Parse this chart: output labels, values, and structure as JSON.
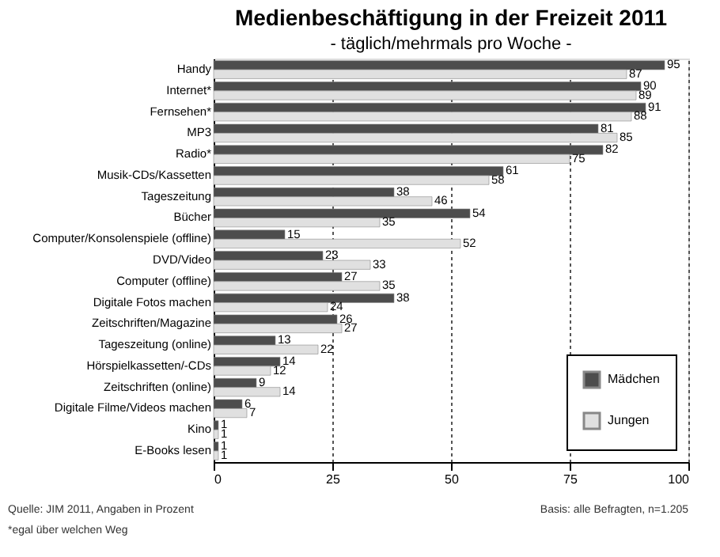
{
  "chart_data": {
    "type": "bar",
    "orientation": "horizontal",
    "title": "Medienbeschäftigung in der Freizeit 2011",
    "subtitle": "- täglich/mehrmals pro Woche -",
    "categories": [
      "Handy",
      "Internet*",
      "Fernsehen*",
      "MP3",
      "Radio*",
      "Musik-CDs/Kassetten",
      "Tageszeitung",
      "Bücher",
      "Computer/Konsolenspiele (offline)",
      "DVD/Video",
      "Computer (offline)",
      "Digitale Fotos machen",
      "Zeitschriften/Magazine",
      "Tageszeitung (online)",
      "Hörspielkassetten/-CDs",
      "Zeitschriften (online)",
      "Digitale Filme/Videos machen",
      "Kino",
      "E-Books lesen"
    ],
    "series": [
      {
        "name": "Mädchen",
        "color": "#4d4d4d",
        "values": [
          95,
          90,
          91,
          81,
          82,
          61,
          38,
          54,
          15,
          23,
          27,
          38,
          26,
          13,
          14,
          9,
          6,
          1,
          1
        ]
      },
      {
        "name": "Jungen",
        "color": "#e0e0e0",
        "values": [
          87,
          89,
          88,
          85,
          75,
          58,
          46,
          35,
          52,
          33,
          35,
          24,
          27,
          22,
          12,
          14,
          7,
          1,
          1
        ]
      }
    ],
    "xlim": [
      0,
      100
    ],
    "xticks": [
      0,
      25,
      50,
      75,
      100
    ],
    "grid": "x",
    "data_labels": true,
    "legend": "bottom right",
    "annotations": [
      "Quelle: JIM 2011, Angaben in Prozent",
      "*egal über welchen Weg",
      "Basis: alle Befragten, n=1.205"
    ]
  }
}
